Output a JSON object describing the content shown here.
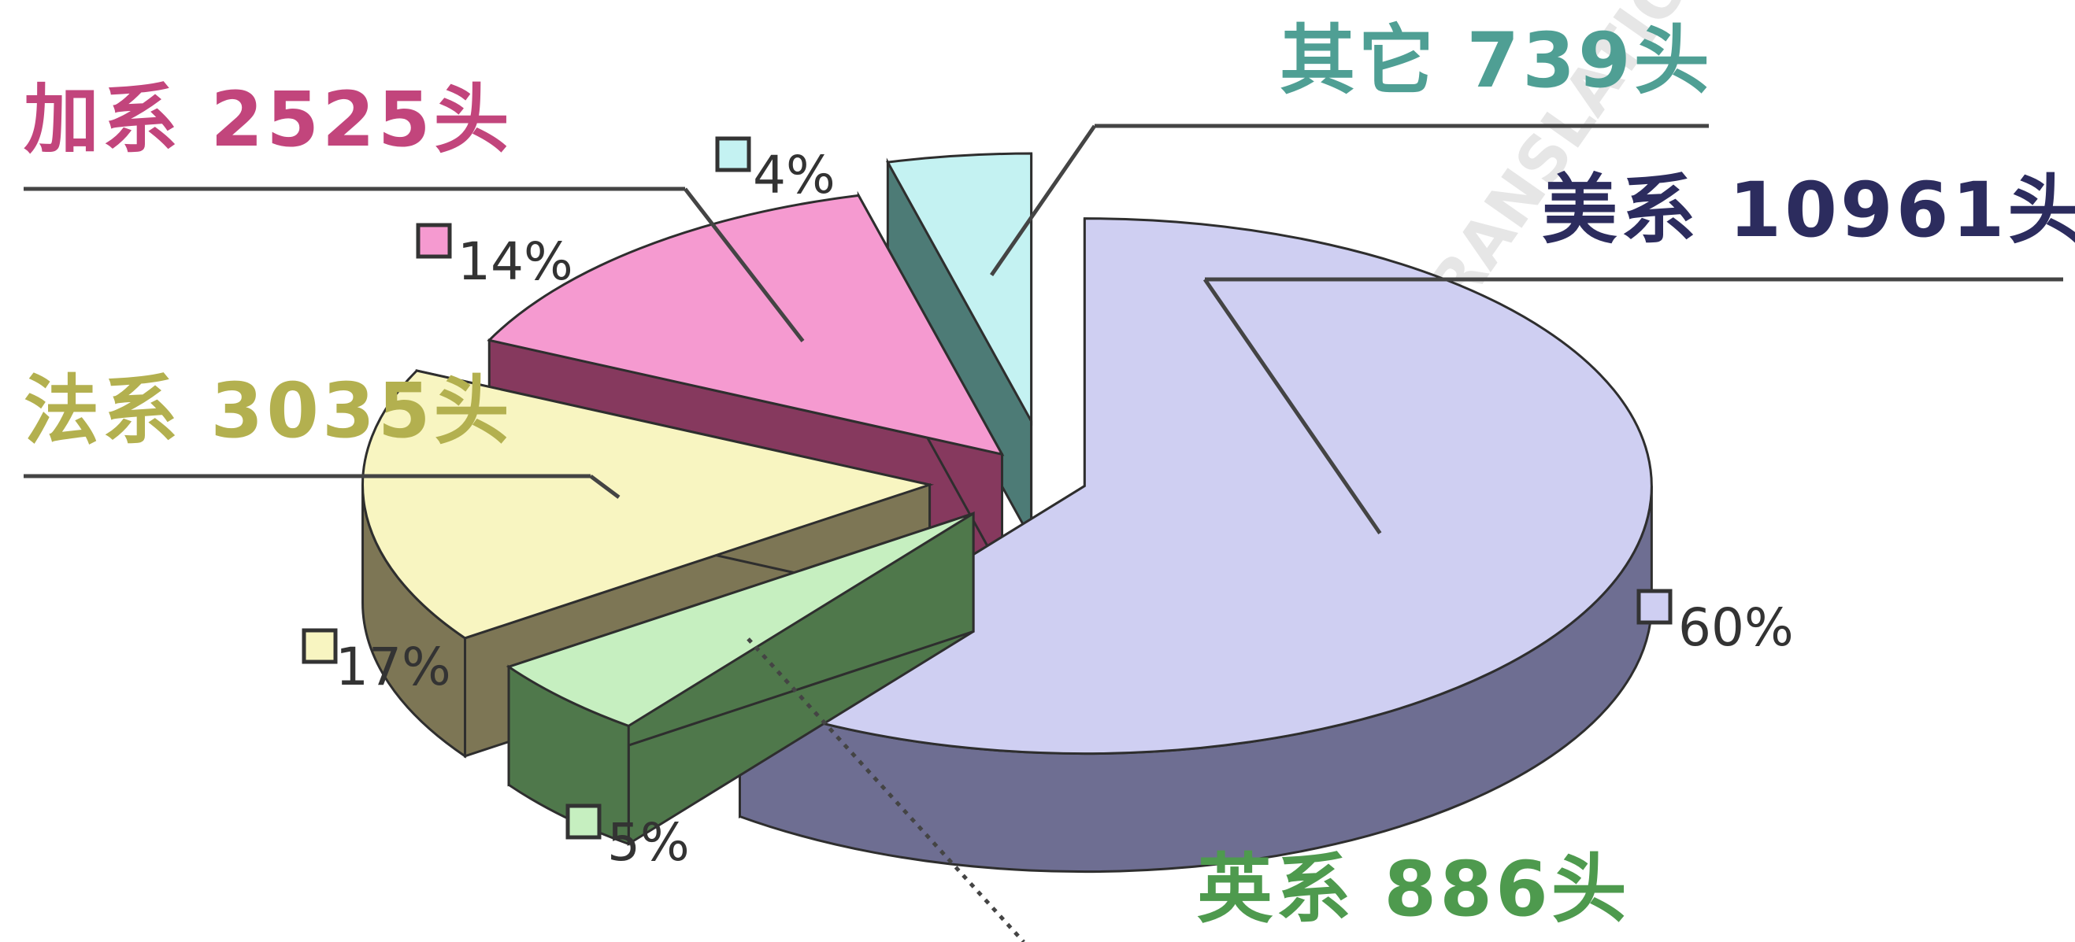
{
  "chart_data": {
    "type": "pie",
    "style": "3d-exploded",
    "unit": "头",
    "slices": [
      {
        "key": "us",
        "name": "美系",
        "value": 10961,
        "percent": "60%",
        "color": "#cfcff2",
        "side": "#6e6e92",
        "label_color": "#2c2c5e"
      },
      {
        "key": "uk",
        "name": "英系",
        "value": 886,
        "percent": "5%",
        "color": "#c6efc0",
        "side": "#4f784b",
        "label_color": "#4e9a4e"
      },
      {
        "key": "fr",
        "name": "法系",
        "value": 3035,
        "percent": "17%",
        "color": "#f8f5c1",
        "side": "#7d7655",
        "label_color": "#b3b04f"
      },
      {
        "key": "ca",
        "name": "加系",
        "value": 2525,
        "percent": "14%",
        "color": "#f59ad0",
        "side": "#86395e",
        "label_color": "#c2457c"
      },
      {
        "key": "other",
        "name": "其它",
        "value": 739,
        "percent": "4%",
        "color": "#c4f2f2",
        "side": "#4d7b76",
        "label_color": "#4f9f94"
      }
    ]
  },
  "watermark": {
    "text": "ACCURATE TRANSLATION",
    "color": "#e6e6e6"
  }
}
